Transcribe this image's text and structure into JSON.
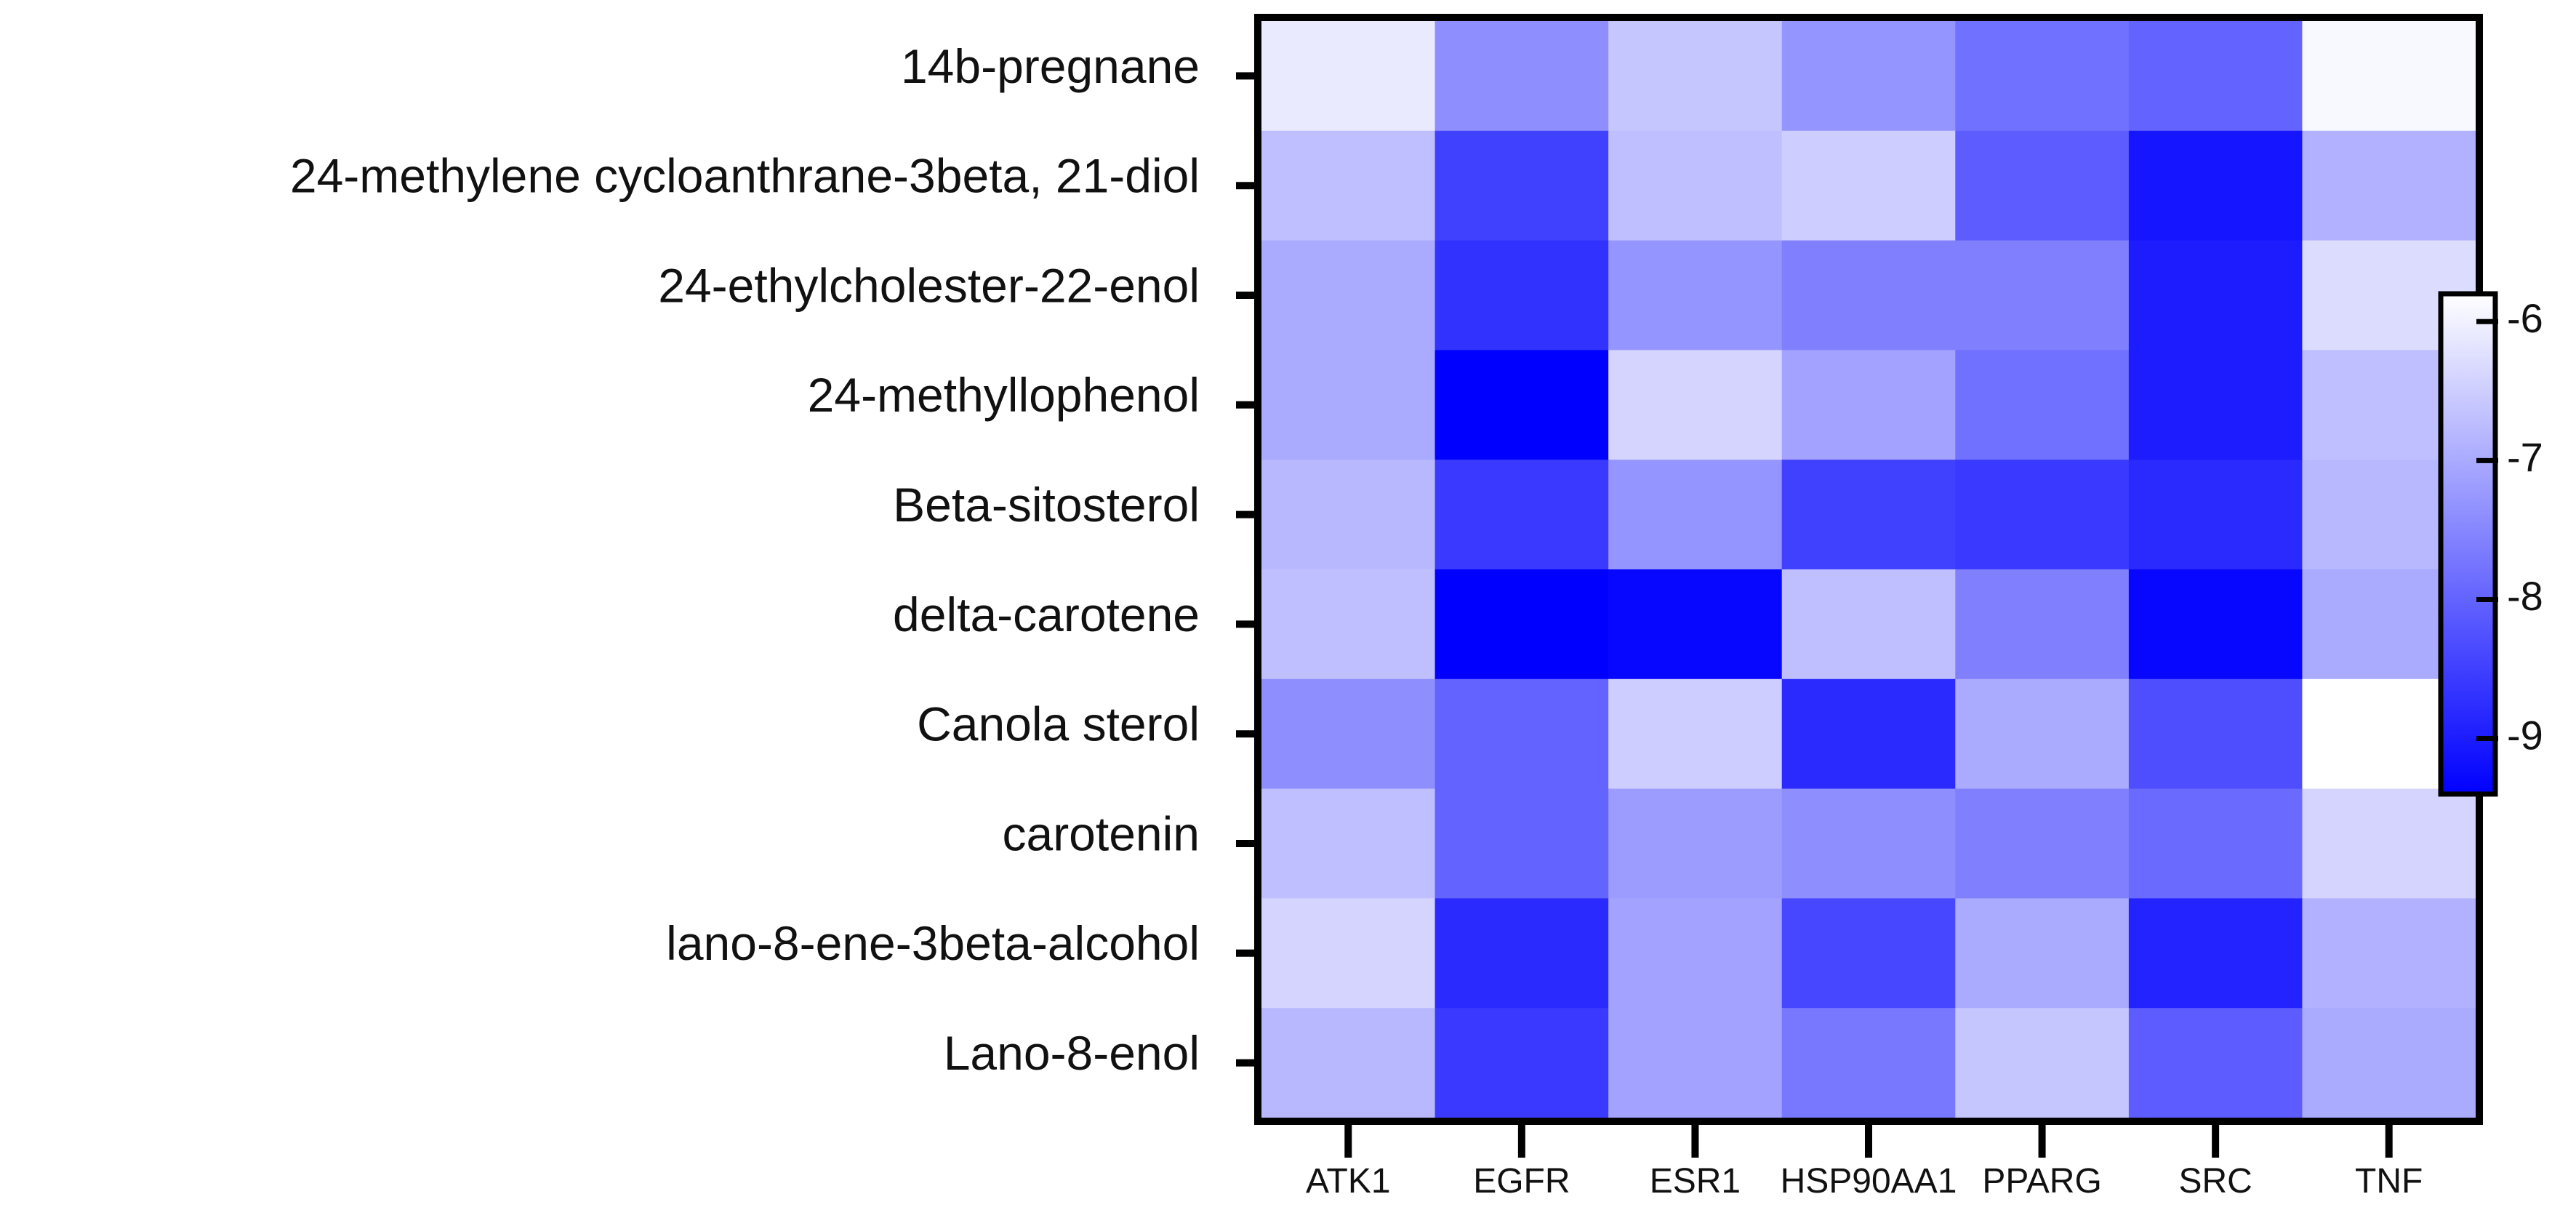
{
  "chart_data": {
    "type": "heatmap",
    "title": "",
    "xlabel": "",
    "ylabel": "",
    "x_categories": [
      "ATK1",
      "EGFR",
      "ESR1",
      "HSP90AA1",
      "PPARG",
      "SRC",
      "TNF"
    ],
    "y_categories": [
      "14b-pregnane",
      "24-methylene cycloanthrane-3beta, 21-diol",
      "24-ethylcholester-22-enol",
      "24-methyllophenol",
      "Beta-sitosterol",
      "delta-carotene",
      "Canola sterol",
      "carotenin",
      "lano-8-ene-3beta-alcohol",
      "Lano-8-enol"
    ],
    "values": [
      [
        -6.1,
        -7.4,
        -6.6,
        -7.3,
        -7.8,
        -8.0,
        -5.9
      ],
      [
        -6.7,
        -8.5,
        -6.7,
        -6.5,
        -8.1,
        -9.1,
        -6.9
      ],
      [
        -7.0,
        -8.7,
        -7.3,
        -7.6,
        -7.6,
        -9.0,
        -6.3
      ],
      [
        -7.0,
        -9.5,
        -6.4,
        -7.1,
        -7.8,
        -9.0,
        -6.7
      ],
      [
        -6.8,
        -8.6,
        -7.3,
        -8.5,
        -8.6,
        -8.8,
        -6.8
      ],
      [
        -6.7,
        -9.5,
        -9.3,
        -6.7,
        -7.6,
        -9.3,
        -7.0
      ],
      [
        -7.4,
        -8.0,
        -6.5,
        -8.8,
        -7.0,
        -8.3,
        -5.8
      ],
      [
        -6.7,
        -8.0,
        -7.2,
        -7.4,
        -7.6,
        -7.9,
        -6.4
      ],
      [
        -6.4,
        -8.8,
        -7.1,
        -8.4,
        -7.0,
        -8.9,
        -6.9
      ],
      [
        -6.8,
        -8.6,
        -7.1,
        -7.7,
        -6.6,
        -8.1,
        -7.0
      ]
    ],
    "colorbar": {
      "range": [
        -9.4,
        -5.8
      ],
      "ticks": [
        -6,
        -7,
        -8,
        -9
      ],
      "tick_labels": [
        "-6",
        "-7",
        "-8",
        "-9"
      ],
      "color_low": "#0000ff",
      "color_high": "#ffffff"
    },
    "grid": false,
    "legend_position": "right"
  }
}
